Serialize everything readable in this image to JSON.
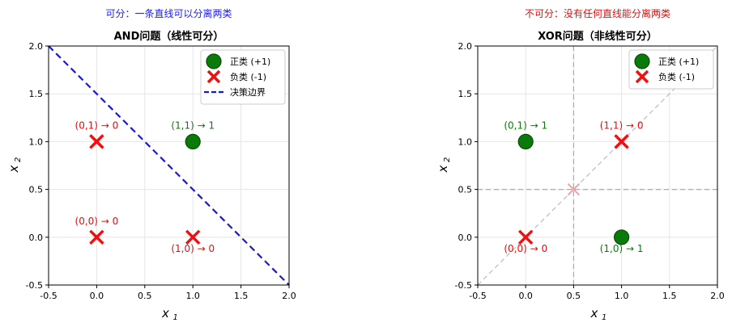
{
  "chart_data": [
    {
      "type": "scatter",
      "suptitle": "可分：一条直线可以分离两类",
      "suptitle_color": "#1a1aff",
      "title": "AND问题（线性可分）",
      "xlabel": "x",
      "xlabel_sub": "1",
      "ylabel": "x",
      "ylabel_sub": "2",
      "xlim": [
        -0.5,
        2.0
      ],
      "ylim": [
        -0.5,
        2.0
      ],
      "xticks": [
        "-0.5",
        "0.0",
        "0.5",
        "1.0",
        "1.5",
        "2.0"
      ],
      "yticks": [
        "-0.5",
        "0.0",
        "0.5",
        "1.0",
        "1.5",
        "2.0"
      ],
      "grid": true,
      "legend_position": "top-right",
      "legend": [
        "正类 (+1)",
        "负类 (-1)",
        "决策边界"
      ],
      "positive_points": [
        [
          1,
          1
        ]
      ],
      "negative_points": [
        [
          0,
          0
        ],
        [
          0,
          1
        ],
        [
          1,
          0
        ]
      ],
      "decision_boundary": {
        "color": "#1a1acc",
        "x": [
          -0.5,
          2.0
        ],
        "y": [
          2.0,
          -0.5
        ]
      },
      "annotations": [
        {
          "text": "(0,1) → 0",
          "x": 0,
          "y": 1,
          "pos": "above",
          "color": "#e01010"
        },
        {
          "text": "(1,1) → 1",
          "x": 1,
          "y": 1,
          "pos": "above",
          "color": "#117711"
        },
        {
          "text": "(0,0) → 0",
          "x": 0,
          "y": 0,
          "pos": "above",
          "color": "#e01010"
        },
        {
          "text": "(1,0) → 0",
          "x": 1,
          "y": 0,
          "pos": "below",
          "color": "#e01010"
        }
      ]
    },
    {
      "type": "scatter",
      "suptitle": "不可分：没有任何直线能分离两类",
      "suptitle_color": "#e01010",
      "title": "XOR问题（非线性可分）",
      "xlabel": "x",
      "xlabel_sub": "1",
      "ylabel": "x",
      "ylabel_sub": "2",
      "xlim": [
        -0.5,
        2.0
      ],
      "ylim": [
        -0.5,
        2.0
      ],
      "xticks": [
        "-0.5",
        "0.0",
        "0.5",
        "1.0",
        "1.5",
        "2.0"
      ],
      "yticks": [
        "-0.5",
        "0.0",
        "0.5",
        "1.0",
        "1.5",
        "2.0"
      ],
      "grid": true,
      "legend_position": "top-right",
      "legend": [
        "正类 (+1)",
        "负类 (-1)"
      ],
      "positive_points": [
        [
          0,
          1
        ],
        [
          1,
          0
        ]
      ],
      "negative_points": [
        [
          0,
          0
        ],
        [
          1,
          1
        ]
      ],
      "faint_marker": [
        0.5,
        0.5
      ],
      "reference_lines": {
        "vertical_x": 0.5,
        "horizontal_y": 0.5,
        "diagonal": [
          [
            -0.5,
            -0.5
          ],
          [
            2.0,
            2.0
          ]
        ]
      },
      "annotations": [
        {
          "text": "(0,1) → 1",
          "x": 0,
          "y": 1,
          "pos": "above",
          "color": "#117711"
        },
        {
          "text": "(1,1) → 0",
          "x": 1,
          "y": 1,
          "pos": "above",
          "color": "#e01010"
        },
        {
          "text": "(0,0) → 0",
          "x": 0,
          "y": 0,
          "pos": "below",
          "color": "#e01010"
        },
        {
          "text": "(1,0) → 1",
          "x": 1,
          "y": 0,
          "pos": "below",
          "color": "#117711"
        }
      ]
    }
  ],
  "colors": {
    "positive": "#0a7a0a",
    "negative": "#ee1111",
    "grid": "#e6e6e6",
    "ref": "#aaaaaa"
  }
}
